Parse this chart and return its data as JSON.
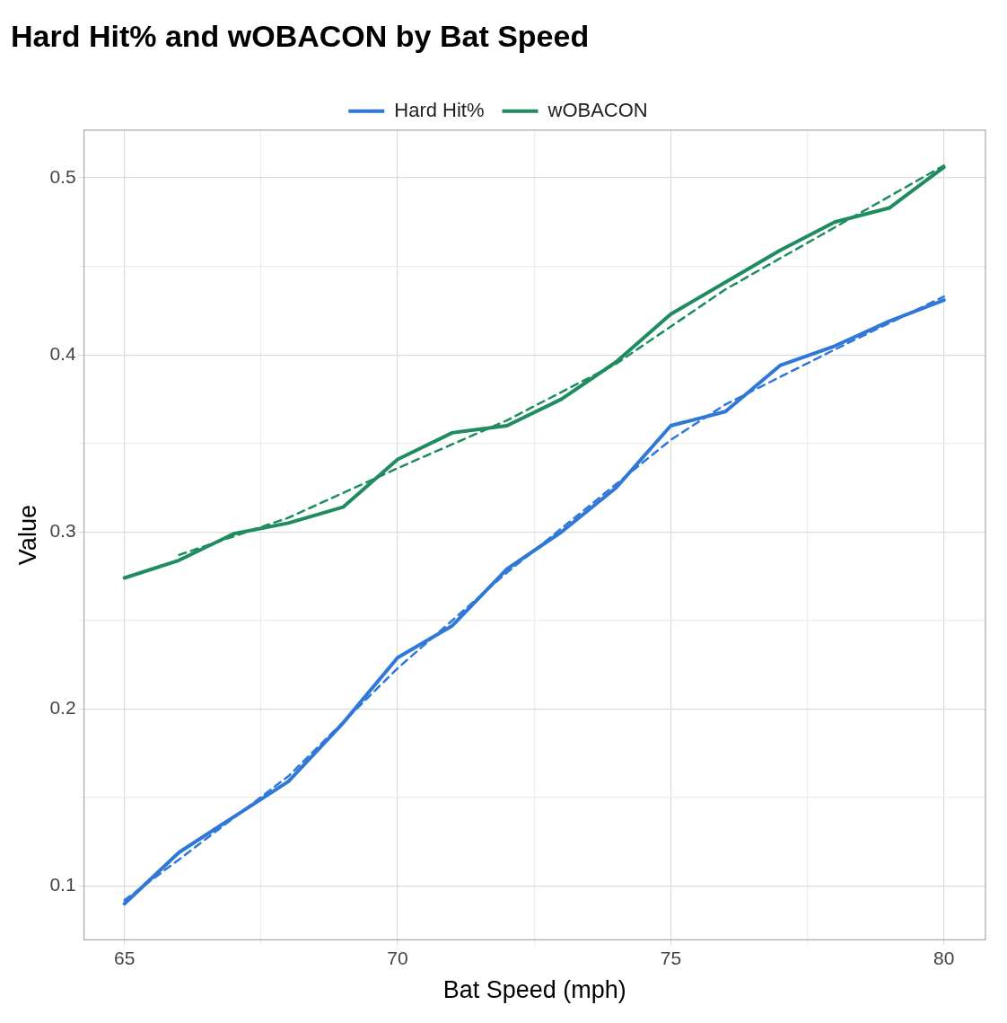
{
  "chart_data": {
    "type": "line",
    "title": "Hard Hit% and wOBACON by Bat Speed",
    "xlabel": "Bat Speed (mph)",
    "ylabel": "Value",
    "x": [
      65,
      66,
      67,
      68,
      69,
      70,
      71,
      72,
      73,
      74,
      75,
      76,
      77,
      78,
      79,
      80
    ],
    "series": [
      {
        "name": "Hard Hit%",
        "color": "#2f78d8",
        "values": [
          0.09,
          0.119,
          0.139,
          0.159,
          0.192,
          0.229,
          0.247,
          0.279,
          0.3,
          0.325,
          0.36,
          0.368,
          0.394,
          0.405,
          0.419,
          0.431
        ]
      },
      {
        "name": "wOBACON",
        "color": "#1e8c5f",
        "values": [
          0.274,
          0.284,
          0.299,
          0.305,
          0.314,
          0.341,
          0.356,
          0.36,
          0.375,
          0.396,
          0.423,
          0.441,
          0.459,
          0.475,
          0.483,
          0.506
        ]
      },
      {
        "type": "line",
        "line_style": "dashed",
        "color": "#2f78d8",
        "x": [
          65,
          66,
          68,
          70,
          72,
          74,
          75,
          76,
          78,
          80
        ],
        "values": [
          0.092,
          0.115,
          0.162,
          0.223,
          0.277,
          0.327,
          0.352,
          0.372,
          0.403,
          0.433
        ]
      },
      {
        "type": "line",
        "line_style": "dashed",
        "color": "#1e8c5f",
        "x": [
          66,
          68,
          70,
          72,
          74,
          76,
          78,
          80
        ],
        "values": [
          0.287,
          0.308,
          0.336,
          0.363,
          0.395,
          0.437,
          0.472,
          0.507
        ]
      }
    ],
    "xlim": [
      64.26,
      80.76
    ],
    "xticks": [
      65,
      {
        "value": 67.5,
        "label": null
      },
      70,
      {
        "value": 72.5,
        "label": null
      },
      75,
      {
        "value": 77.5,
        "label": null
      },
      80
    ],
    "ylim": [
      0.0696,
      0.527
    ],
    "yticks": [
      0.1,
      {
        "value": 0.15,
        "label": null
      },
      0.2,
      {
        "value": 0.25,
        "label": null
      },
      0.3,
      {
        "value": 0.35,
        "label": null
      },
      0.4,
      {
        "value": 0.45,
        "label": null
      },
      0.5
    ],
    "grid": true,
    "legend": "top"
  }
}
